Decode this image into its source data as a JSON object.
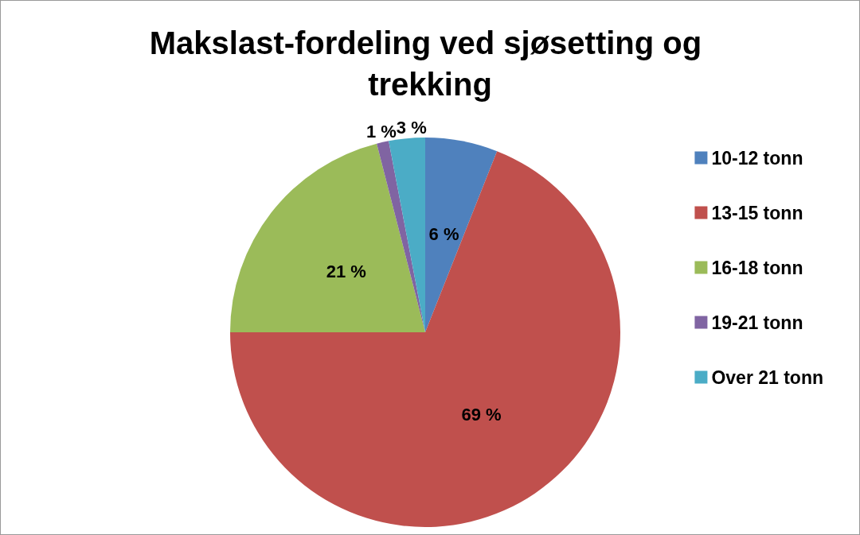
{
  "chart_data": {
    "type": "pie",
    "title": "Makslast-fordeling ved sjøsetting og trekking",
    "categories": [
      "10-12 tonn",
      "13-15 tonn",
      "16-18 tonn",
      "19-21 tonn",
      "Over 21 tonn"
    ],
    "values": [
      6,
      69,
      21,
      1,
      3
    ],
    "colors": [
      "#4f81bd",
      "#c0504d",
      "#9bbb59",
      "#8064a2",
      "#4bacc6"
    ],
    "value_labels": [
      "6 %",
      "69 %",
      "21 %",
      "1 %",
      "3 %"
    ],
    "legend": "right"
  }
}
